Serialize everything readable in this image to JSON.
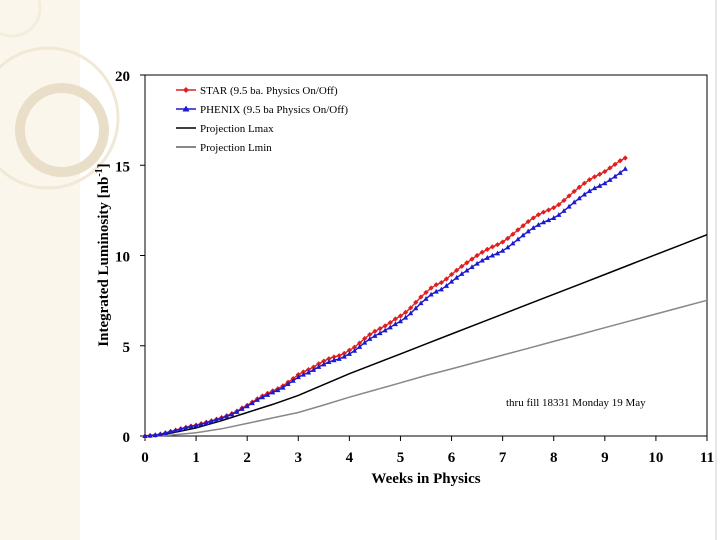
{
  "chart_data": {
    "type": "line",
    "title": "",
    "xlabel": "Weeks in Physics",
    "ylabel_main": "Integrated Luminosity [nb",
    "ylabel_sup": "-1",
    "ylabel_close": "]",
    "xlim": [
      0,
      11
    ],
    "ylim": [
      0,
      20
    ],
    "xticks": [
      0,
      1,
      2,
      3,
      4,
      5,
      6,
      7,
      8,
      9,
      10,
      11
    ],
    "yticks": [
      0,
      5,
      10,
      15,
      20
    ],
    "annotation": "thru fill 18331 Monday 19 May",
    "legend_position": "top-left",
    "series": [
      {
        "name": "STAR (9.5 ba. Physics On/Off)",
        "color": "#e02020",
        "marker": "diamond",
        "x": [
          0,
          0.1,
          0.2,
          0.3,
          0.4,
          0.5,
          0.6,
          0.7,
          0.8,
          0.9,
          1.0,
          1.1,
          1.2,
          1.3,
          1.4,
          1.5,
          1.6,
          1.7,
          1.8,
          1.9,
          2.0,
          2.1,
          2.2,
          2.3,
          2.4,
          2.5,
          2.6,
          2.7,
          2.8,
          2.9,
          3.0,
          3.1,
          3.2,
          3.3,
          3.4,
          3.5,
          3.6,
          3.7,
          3.8,
          3.9,
          4.0,
          4.1,
          4.2,
          4.3,
          4.4,
          4.5,
          4.6,
          4.7,
          4.8,
          4.9,
          5.0,
          5.1,
          5.2,
          5.3,
          5.4,
          5.5,
          5.6,
          5.7,
          5.8,
          5.9,
          6.0,
          6.1,
          6.2,
          6.3,
          6.4,
          6.5,
          6.6,
          6.7,
          6.8,
          6.9,
          7.0,
          7.1,
          7.2,
          7.3,
          7.4,
          7.5,
          7.6,
          7.7,
          7.8,
          7.9,
          8.0,
          8.1,
          8.2,
          8.3,
          8.4,
          8.5,
          8.6,
          8.7,
          8.8,
          8.9,
          9.0,
          9.1,
          9.2,
          9.3,
          9.4
        ],
        "values": [
          0,
          0.02,
          0.05,
          0.1,
          0.17,
          0.25,
          0.32,
          0.4,
          0.48,
          0.55,
          0.6,
          0.68,
          0.76,
          0.84,
          0.93,
          1.02,
          1.12,
          1.24,
          1.38,
          1.55,
          1.7,
          1.88,
          2.06,
          2.22,
          2.36,
          2.5,
          2.62,
          2.78,
          2.98,
          3.18,
          3.4,
          3.55,
          3.68,
          3.82,
          4.0,
          4.15,
          4.28,
          4.38,
          4.45,
          4.58,
          4.75,
          4.92,
          5.15,
          5.4,
          5.62,
          5.8,
          5.95,
          6.1,
          6.28,
          6.48,
          6.65,
          6.85,
          7.1,
          7.4,
          7.7,
          7.95,
          8.2,
          8.38,
          8.5,
          8.7,
          8.95,
          9.18,
          9.4,
          9.6,
          9.8,
          10.0,
          10.18,
          10.34,
          10.48,
          10.6,
          10.75,
          10.95,
          11.18,
          11.42,
          11.65,
          11.88,
          12.08,
          12.26,
          12.4,
          12.52,
          12.65,
          12.82,
          13.05,
          13.3,
          13.55,
          13.78,
          14.0,
          14.2,
          14.36,
          14.5,
          14.65,
          14.85,
          15.05,
          15.25,
          15.4
        ]
      },
      {
        "name": "PHENIX (9.5 ba Physics On/Off)",
        "color": "#1a1ad0",
        "marker": "triangle",
        "x": [
          0,
          0.1,
          0.2,
          0.3,
          0.4,
          0.5,
          0.6,
          0.7,
          0.8,
          0.9,
          1.0,
          1.1,
          1.2,
          1.3,
          1.4,
          1.5,
          1.6,
          1.7,
          1.8,
          1.9,
          2.0,
          2.1,
          2.2,
          2.3,
          2.4,
          2.5,
          2.6,
          2.7,
          2.8,
          2.9,
          3.0,
          3.1,
          3.2,
          3.3,
          3.4,
          3.5,
          3.6,
          3.7,
          3.8,
          3.9,
          4.0,
          4.1,
          4.2,
          4.3,
          4.4,
          4.5,
          4.6,
          4.7,
          4.8,
          4.9,
          5.0,
          5.1,
          5.2,
          5.3,
          5.4,
          5.5,
          5.6,
          5.7,
          5.8,
          5.9,
          6.0,
          6.1,
          6.2,
          6.3,
          6.4,
          6.5,
          6.6,
          6.7,
          6.8,
          6.9,
          7.0,
          7.1,
          7.2,
          7.3,
          7.4,
          7.5,
          7.6,
          7.7,
          7.8,
          7.9,
          8.0,
          8.1,
          8.2,
          8.3,
          8.4,
          8.5,
          8.6,
          8.7,
          8.8,
          8.9,
          9.0,
          9.1,
          9.2,
          9.3,
          9.4
        ],
        "values": [
          0,
          0.02,
          0.05,
          0.1,
          0.16,
          0.24,
          0.31,
          0.38,
          0.46,
          0.53,
          0.58,
          0.65,
          0.73,
          0.81,
          0.9,
          0.99,
          1.09,
          1.2,
          1.34,
          1.5,
          1.65,
          1.82,
          2.0,
          2.15,
          2.28,
          2.42,
          2.54,
          2.68,
          2.88,
          3.06,
          3.26,
          3.4,
          3.52,
          3.66,
          3.83,
          3.97,
          4.1,
          4.2,
          4.27,
          4.4,
          4.55,
          4.72,
          4.94,
          5.17,
          5.38,
          5.55,
          5.7,
          5.85,
          6.02,
          6.2,
          6.36,
          6.56,
          6.8,
          7.08,
          7.36,
          7.6,
          7.84,
          8.0,
          8.12,
          8.32,
          8.55,
          8.77,
          8.98,
          9.17,
          9.36,
          9.55,
          9.72,
          9.87,
          10.0,
          10.12,
          10.26,
          10.45,
          10.67,
          10.9,
          11.12,
          11.34,
          11.53,
          11.7,
          11.84,
          11.96,
          12.08,
          12.25,
          12.47,
          12.71,
          12.95,
          13.17,
          13.38,
          13.57,
          13.73,
          13.86,
          14.0,
          14.19,
          14.38,
          14.58,
          14.8
        ]
      },
      {
        "name": "Projection Lmax",
        "color": "#000000",
        "marker": "none",
        "x": [
          0,
          0.5,
          1.0,
          1.5,
          2.0,
          2.5,
          3.0,
          3.5,
          4.0,
          4.5,
          5.0,
          5.5,
          6.0,
          6.5,
          7.0,
          7.5,
          8.0,
          8.5,
          9.0,
          9.5,
          10.0,
          10.5,
          11.0
        ],
        "values": [
          0,
          0.15,
          0.45,
          0.85,
          1.3,
          1.75,
          2.25,
          2.85,
          3.45,
          4.0,
          4.55,
          5.1,
          5.65,
          6.2,
          6.75,
          7.3,
          7.85,
          8.4,
          8.95,
          9.5,
          10.05,
          10.6,
          11.15
        ]
      },
      {
        "name": "Projection Lmin",
        "color": "#888888",
        "marker": "none",
        "x": [
          0,
          0.5,
          1.0,
          1.5,
          2.0,
          2.5,
          3.0,
          3.5,
          4.0,
          4.5,
          5.0,
          5.5,
          6.0,
          6.5,
          7.0,
          7.5,
          8.0,
          8.5,
          9.0,
          9.5,
          10.0,
          10.5,
          11.0
        ],
        "values": [
          0,
          0.05,
          0.18,
          0.4,
          0.7,
          1.0,
          1.3,
          1.72,
          2.15,
          2.55,
          2.95,
          3.35,
          3.72,
          4.1,
          4.48,
          4.86,
          5.24,
          5.62,
          6.0,
          6.38,
          6.76,
          7.14,
          7.52
        ]
      }
    ]
  }
}
